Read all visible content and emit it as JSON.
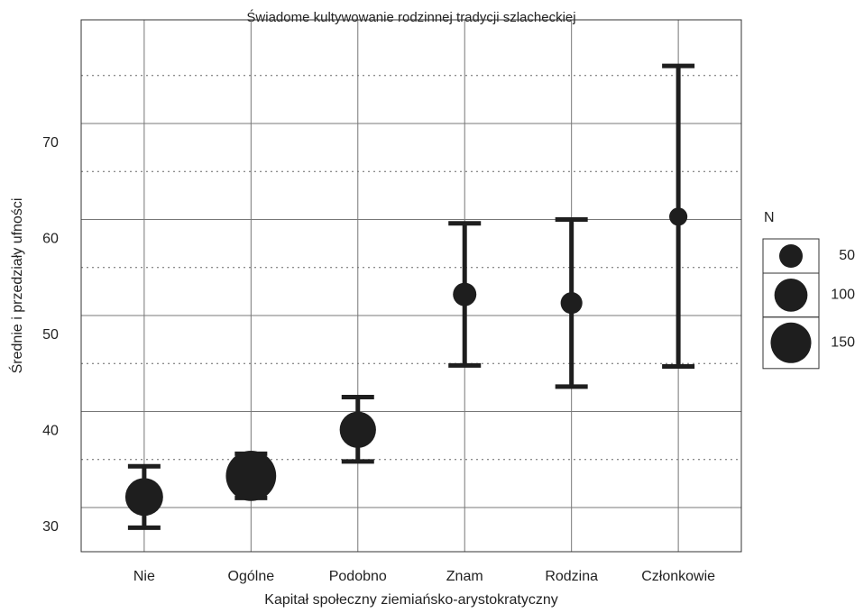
{
  "chart_data": {
    "type": "errorbar",
    "title": "Świadome kultywowanie rodzinnej tradycji szlacheckiej",
    "xlabel": "Kapitał społeczny ziemiańsko-arystokratyczny",
    "ylabel": "Średnie i przedziały ufności",
    "categories": [
      "Nie",
      "Ogólne",
      "Podobno",
      "Znam",
      "Rodzina",
      "Członkowie"
    ],
    "means": [
      31.1,
      33.3,
      38.1,
      52.2,
      51.3,
      60.3
    ],
    "lower": [
      27.9,
      31.0,
      34.8,
      44.8,
      42.6,
      44.7
    ],
    "upper": [
      34.3,
      35.6,
      41.5,
      59.6,
      60.0,
      76.0
    ],
    "n": [
      130,
      230,
      120,
      50,
      43,
      30
    ],
    "color": "#1e1e1e",
    "ylim": [
      25.4,
      80.8
    ],
    "yticks": [
      30,
      40,
      50,
      60,
      70
    ],
    "minor_yticks": [
      35,
      45,
      55,
      65,
      75
    ],
    "grid": true,
    "legend": {
      "title": "N",
      "sizes": [
        50,
        100,
        150
      ],
      "position": "right"
    }
  }
}
